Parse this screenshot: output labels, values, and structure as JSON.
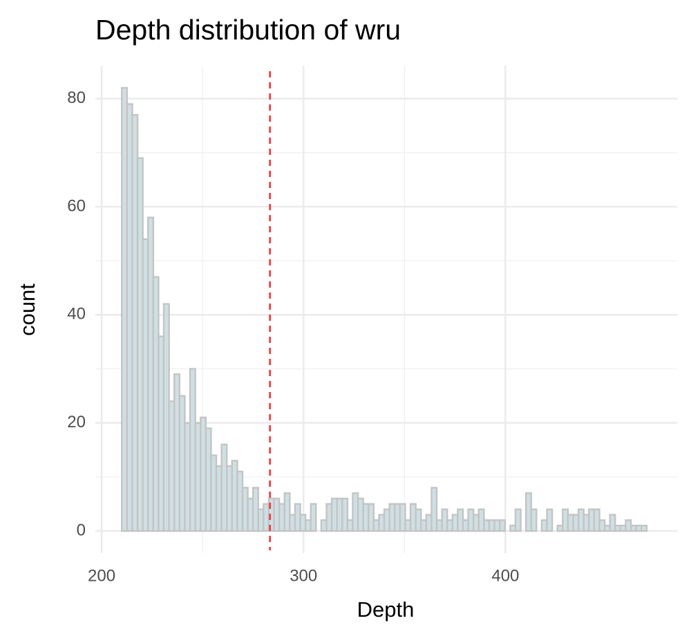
{
  "chart_data": {
    "type": "histogram",
    "title": "Depth distribution of wru",
    "x_label": "Depth",
    "y_label": "count",
    "bins": [
      210,
      212.6,
      215.2,
      217.8,
      220.4,
      223,
      225.6,
      228.2,
      230.8,
      233.4,
      236,
      238.6,
      241.2,
      243.8,
      246.4,
      249,
      251.6,
      254.2,
      256.8,
      259.4,
      262,
      264.6,
      267.2,
      269.8,
      272.4,
      275,
      277.6,
      280.2,
      282.8,
      285.4,
      288,
      290.6,
      293.2,
      295.8,
      298.4,
      301,
      303.6,
      306.2,
      308.8,
      311.4,
      314,
      316.6,
      319.2,
      321.8,
      324.4,
      327,
      329.6,
      332.2,
      334.8,
      337.4,
      340,
      342.6,
      345.2,
      347.8,
      350.4,
      353,
      355.6,
      358.2,
      360.8,
      363.4,
      366,
      368.6,
      371.2,
      373.8,
      376.4,
      379,
      381.6,
      384.2,
      386.8,
      389.4,
      392,
      394.6,
      397.2,
      399.8,
      402.4,
      405,
      407.6,
      410.2,
      412.8,
      415.4,
      418,
      420.6,
      423.2,
      425.8,
      428.4,
      431,
      433.6,
      436.2,
      438.8,
      441.4,
      444,
      446.6,
      449.2,
      451.8,
      454.4,
      457,
      459.6,
      462.2,
      464.8,
      467.4,
      470
    ],
    "counts": [
      82,
      79,
      77,
      69,
      54,
      58,
      47,
      36,
      42,
      24,
      29,
      25,
      20,
      30,
      20,
      21,
      19,
      14,
      12,
      16,
      12,
      13,
      11,
      8,
      6,
      8,
      4,
      5,
      6,
      6,
      5,
      7,
      3,
      5,
      3,
      2,
      5,
      0,
      2,
      5,
      6,
      6,
      6,
      2,
      7,
      6,
      5,
      5,
      2,
      3,
      4,
      5,
      5,
      5,
      2,
      5,
      4,
      2,
      3,
      8,
      2,
      4,
      2,
      3,
      4,
      2,
      4,
      3,
      4,
      2,
      2,
      2,
      2,
      0,
      1,
      4,
      0,
      7,
      4,
      0,
      2,
      4,
      0,
      1,
      4,
      3,
      3,
      4,
      3,
      4,
      4,
      2,
      1,
      3,
      1,
      1,
      2,
      1,
      1,
      1
    ],
    "fill": "#cfe0e4",
    "edge_color": "#c4c4c4",
    "vline": 283.4,
    "vline_color": "#f03c3c",
    "xlim": [
      196.9,
      485.1
    ],
    "ylim": [
      -4.1,
      86.1
    ],
    "xticks": [
      200,
      300,
      400
    ],
    "yticks": [
      0,
      20,
      40,
      60,
      80
    ],
    "grid": true,
    "minor_grid": true
  }
}
